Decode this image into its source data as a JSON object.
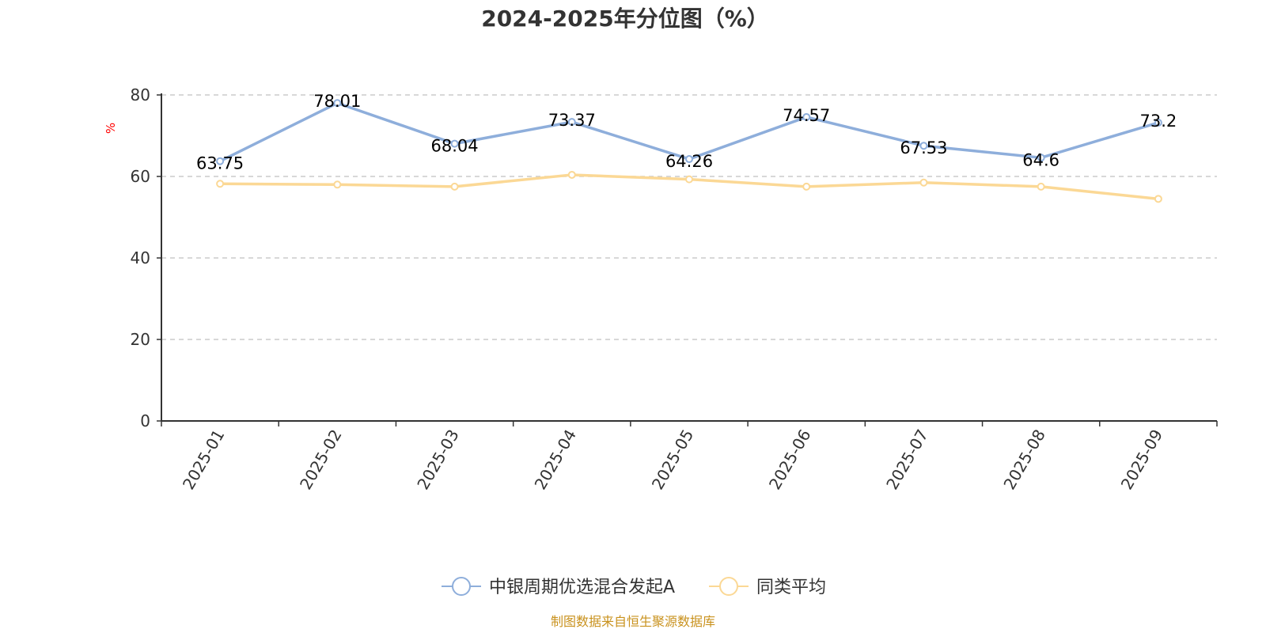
{
  "chart_data": {
    "type": "line",
    "title": "2024-2025年分位图（%）",
    "ylabel": "%",
    "xlabel": "",
    "ylim": [
      0,
      80
    ],
    "yticks": [
      0,
      20,
      40,
      60,
      80
    ],
    "grid": true,
    "legend_position": "bottom-center",
    "categories": [
      "2025-01",
      "2025-02",
      "2025-03",
      "2025-04",
      "2025-05",
      "2025-06",
      "2025-07",
      "2025-08",
      "2025-09"
    ],
    "series": [
      {
        "name": "中银周期优选混合发起A",
        "values": [
          63.75,
          78.01,
          68.04,
          73.37,
          64.26,
          74.57,
          67.53,
          64.6,
          73.2
        ],
        "labels": [
          "63.75",
          "78.01",
          "68.04",
          "73.37",
          "64.26",
          "74.57",
          "67.53",
          "64.6",
          "73.2"
        ],
        "color": "#8eaedb"
      },
      {
        "name": "同类平均",
        "values": [
          58.2,
          58.0,
          57.5,
          60.4,
          59.3,
          57.5,
          58.5,
          57.5,
          54.5
        ],
        "color": "#fbd895"
      }
    ],
    "source": "制图数据来自恒生聚源数据库",
    "source_color": "#c9921e",
    "axis_color": "#333333",
    "grid_color": "#cccccc",
    "unit_color": "#ff0000"
  }
}
